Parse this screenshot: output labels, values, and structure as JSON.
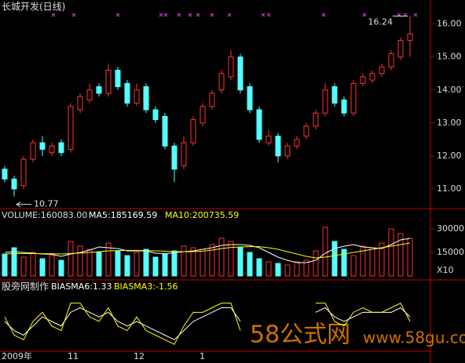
{
  "chart_data": {
    "type": "candlestick",
    "title": "长城开发(日线)",
    "categories": [
      "2009年",
      null,
      null,
      null,
      null,
      null,
      null,
      "11",
      null,
      null,
      null,
      null,
      null,
      null,
      "12",
      null,
      null,
      null,
      null,
      null,
      null,
      "1",
      null,
      null,
      null,
      null,
      null,
      null,
      null,
      null,
      null,
      null,
      null,
      null,
      null,
      null,
      null,
      null,
      null,
      null,
      null,
      null,
      null,
      null
    ],
    "open": [
      11.6,
      11.3,
      11.1,
      11.9,
      12.4,
      12.1,
      12.4,
      12.2,
      13.4,
      13.7,
      14.1,
      13.9,
      14.6,
      14.2,
      13.6,
      14.1,
      13.4,
      13.2,
      12.3,
      11.7,
      12.4,
      13.0,
      13.5,
      14.0,
      14.4,
      15.0,
      14.1,
      13.4,
      12.4,
      12.6,
      12.0,
      12.3,
      12.6,
      12.9,
      13.3,
      14.1,
      13.7,
      13.3,
      14.2,
      14.3,
      14.5,
      14.7,
      15.0,
      15.5
    ],
    "high": [
      11.7,
      11.4,
      12.0,
      12.5,
      12.6,
      12.4,
      12.5,
      13.6,
      13.9,
      14.2,
      14.2,
      14.8,
      14.7,
      14.3,
      14.2,
      14.2,
      13.5,
      13.3,
      12.4,
      12.6,
      13.2,
      13.6,
      14.0,
      14.6,
      15.2,
      15.1,
      14.2,
      13.5,
      12.8,
      12.7,
      12.4,
      12.6,
      13.0,
      13.4,
      14.2,
      14.2,
      13.8,
      14.3,
      14.5,
      14.6,
      14.8,
      15.2,
      15.6,
      16.24
    ],
    "low": [
      11.2,
      10.77,
      11.0,
      11.8,
      12.0,
      12.0,
      12.0,
      12.1,
      13.3,
      13.6,
      13.8,
      13.8,
      14.0,
      13.5,
      13.5,
      13.3,
      13.0,
      12.2,
      11.2,
      11.6,
      12.3,
      12.9,
      13.4,
      13.9,
      14.3,
      13.9,
      13.3,
      12.4,
      12.3,
      11.8,
      11.9,
      12.2,
      12.5,
      12.8,
      13.2,
      13.5,
      13.2,
      13.2,
      14.1,
      14.2,
      14.4,
      14.6,
      14.9,
      15.0
    ],
    "close": [
      11.3,
      11.0,
      11.9,
      12.4,
      12.2,
      12.3,
      12.1,
      13.5,
      13.8,
      14.0,
      13.9,
      14.6,
      14.1,
      13.6,
      14.0,
      13.4,
      13.1,
      12.3,
      11.6,
      12.4,
      13.1,
      13.5,
      13.9,
      14.5,
      15.0,
      14.0,
      13.4,
      12.5,
      12.6,
      12.0,
      12.3,
      12.5,
      12.9,
      13.3,
      14.0,
      13.6,
      13.3,
      14.2,
      14.4,
      14.5,
      14.7,
      15.1,
      15.5,
      15.7
    ],
    "up_color": "#ff3232",
    "down_color": "#54ffff",
    "ylim": [
      10.5,
      16.3
    ],
    "yticks": [
      {
        "value": 11,
        "label": "11.00"
      },
      {
        "value": 12,
        "label": "12.00"
      },
      {
        "value": 13,
        "label": "13.00"
      },
      {
        "value": 14,
        "label": "14.00"
      },
      {
        "value": 15,
        "label": "15.00"
      },
      {
        "value": 16,
        "label": "16.00"
      }
    ],
    "high_label": "16.24",
    "low_label": "10.77",
    "volume": {
      "label": "VOLUME:160083.00",
      "values": [
        14000,
        18000,
        12000,
        15000,
        11000,
        13000,
        10000,
        22000,
        19000,
        17000,
        15000,
        21000,
        16000,
        13000,
        15000,
        17000,
        12000,
        14000,
        16000,
        19000,
        18000,
        17000,
        20000,
        24000,
        22000,
        18000,
        15000,
        11000,
        9000,
        8000,
        7000,
        9000,
        10000,
        16000,
        31000,
        22000,
        17000,
        13000,
        19000,
        18000,
        21000,
        30000,
        27000,
        24000
      ],
      "ylim": [
        0,
        42000
      ],
      "yticks": [
        15000,
        30000
      ],
      "unit": "X10",
      "series": [
        {
          "name": "MA5:185169.59",
          "color": "#ffffff",
          "values": [
            15000,
            15500,
            15000,
            14500,
            14000,
            13800,
            12500,
            14000,
            15000,
            16500,
            18500,
            18000,
            17500,
            16000,
            16000,
            16000,
            14500,
            14200,
            14800,
            15500,
            16000,
            17000,
            18000,
            19500,
            20000,
            20000,
            19500,
            18000,
            15000,
            12000,
            10000,
            8500,
            8500,
            10000,
            14500,
            17500,
            19000,
            20000,
            18500,
            18000,
            17500,
            20000,
            23000,
            24000
          ]
        },
        {
          "name": "MA10:200735.59",
          "color": "#ffff00",
          "values": [
            14000,
            14200,
            14300,
            14300,
            14200,
            14200,
            14000,
            14300,
            14600,
            15000,
            15500,
            16000,
            16200,
            16300,
            16300,
            16200,
            16000,
            15800,
            15500,
            15500,
            15500,
            15800,
            16500,
            17500,
            18200,
            18500,
            18700,
            18700,
            18000,
            17000,
            15500,
            14000,
            12500,
            11500,
            12000,
            13000,
            14000,
            15000,
            16000,
            17000,
            18000,
            19000,
            20000,
            21000
          ]
        }
      ]
    },
    "indicator": {
      "label": "股旁网制作",
      "ylim": [
        -6,
        6
      ],
      "series": [
        {
          "name": "BIASMA6:1.33",
          "color": "#ffffff",
          "values": [
            0,
            -2,
            -3,
            -1,
            1,
            0,
            -1,
            2,
            3,
            2,
            1,
            2,
            0,
            -1,
            0,
            -1,
            -2,
            -3,
            -4,
            -2,
            0,
            1,
            2,
            3,
            3,
            0,
            null,
            null,
            null,
            null,
            null,
            null,
            null,
            2,
            3,
            1,
            0,
            1,
            2,
            2,
            2,
            2,
            3,
            1
          ]
        },
        {
          "name": "BIASMA3:-1.56",
          "color": "#ffff00",
          "values": [
            1,
            -3,
            -4,
            0,
            2,
            -1,
            -2,
            4,
            4,
            1,
            0,
            3,
            -1,
            -2,
            1,
            -2,
            -3,
            -4,
            -5,
            -1,
            2,
            2,
            3,
            4,
            4,
            -2,
            null,
            null,
            null,
            null,
            null,
            null,
            null,
            4,
            4,
            0,
            -1,
            2,
            3,
            2,
            2,
            3,
            4,
            0
          ]
        }
      ]
    }
  },
  "watermark": {
    "logo": "58公式网",
    "url": "www.58gu.com"
  }
}
